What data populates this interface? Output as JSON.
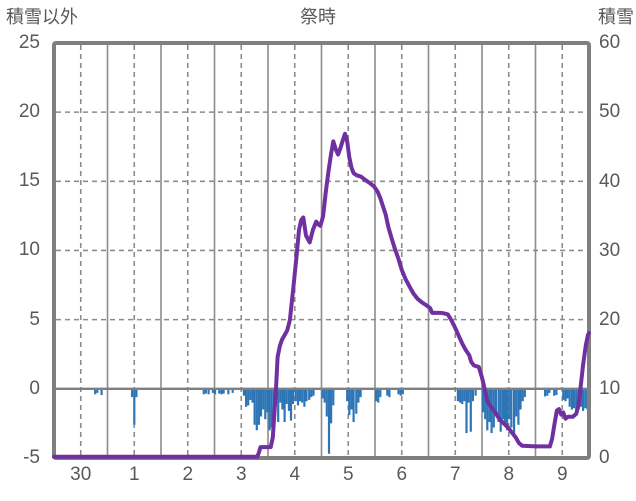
{
  "chart_data": {
    "type": "line+bar",
    "title": "祭時",
    "left_axis": {
      "title": "積雪以外",
      "min": -5,
      "max": 25,
      "ticks": [
        25,
        20,
        15,
        10,
        5,
        0,
        -5
      ]
    },
    "right_axis": {
      "title": "積雪",
      "min": 0,
      "max": 60,
      "ticks": [
        60,
        50,
        40,
        30,
        20,
        10,
        0
      ]
    },
    "x_axis": {
      "labels": [
        "30",
        "1",
        "2",
        "3",
        "4",
        "5",
        "6",
        "7",
        "8",
        "9"
      ],
      "days": 10,
      "grid": "solid at midnight, dashed at noon"
    },
    "colors": {
      "grid": "#8C8C8C",
      "axis": "#7F7F7F",
      "line": "#7030A0",
      "bar": "#2E75B6",
      "text": "#595959",
      "background": "#FFFFFF"
    },
    "series": [
      {
        "name": "積雪",
        "type": "line",
        "axis": "right",
        "color": "#7030A0",
        "points": [
          [
            0,
            0.2
          ],
          [
            3.8,
            0.2
          ],
          [
            3.83,
            0.8
          ],
          [
            3.86,
            1.6
          ],
          [
            4.05,
            1.6
          ],
          [
            4.09,
            3.0
          ],
          [
            4.12,
            6.5
          ],
          [
            4.15,
            10.0
          ],
          [
            4.18,
            14.6
          ],
          [
            4.22,
            16.2
          ],
          [
            4.26,
            17.1
          ],
          [
            4.31,
            17.8
          ],
          [
            4.36,
            18.5
          ],
          [
            4.41,
            20.0
          ],
          [
            4.47,
            24.3
          ],
          [
            4.53,
            29.0
          ],
          [
            4.58,
            33.0
          ],
          [
            4.62,
            34.4
          ],
          [
            4.66,
            34.8
          ],
          [
            4.71,
            32.2
          ],
          [
            4.78,
            31.2
          ],
          [
            4.84,
            33.0
          ],
          [
            4.9,
            34.2
          ],
          [
            4.94,
            33.8
          ],
          [
            4.98,
            33.6
          ],
          [
            5.03,
            35.0
          ],
          [
            5.08,
            38.5
          ],
          [
            5.13,
            41.5
          ],
          [
            5.18,
            44.0
          ],
          [
            5.22,
            45.8
          ],
          [
            5.27,
            44.6
          ],
          [
            5.31,
            43.9
          ],
          [
            5.36,
            45.0
          ],
          [
            5.4,
            46.0
          ],
          [
            5.44,
            46.9
          ],
          [
            5.48,
            45.8
          ],
          [
            5.52,
            43.5
          ],
          [
            5.56,
            42.0
          ],
          [
            5.6,
            41.2
          ],
          [
            5.66,
            40.9
          ],
          [
            5.74,
            40.7
          ],
          [
            5.82,
            40.2
          ],
          [
            5.9,
            39.8
          ],
          [
            5.98,
            39.3
          ],
          [
            6.05,
            38.5
          ],
          [
            6.1,
            37.6
          ],
          [
            6.15,
            36.4
          ],
          [
            6.2,
            35.2
          ],
          [
            6.25,
            33.4
          ],
          [
            6.31,
            31.8
          ],
          [
            6.37,
            30.3
          ],
          [
            6.44,
            28.8
          ],
          [
            6.5,
            27.2
          ],
          [
            6.57,
            25.9
          ],
          [
            6.64,
            24.9
          ],
          [
            6.72,
            23.8
          ],
          [
            6.8,
            23.0
          ],
          [
            6.88,
            22.5
          ],
          [
            6.96,
            22.1
          ],
          [
            7.03,
            21.7
          ],
          [
            7.07,
            21.0
          ],
          [
            7.15,
            21.0
          ],
          [
            7.25,
            21.0
          ],
          [
            7.36,
            20.8
          ],
          [
            7.43,
            19.9
          ],
          [
            7.5,
            18.8
          ],
          [
            7.57,
            17.6
          ],
          [
            7.63,
            16.6
          ],
          [
            7.7,
            15.6
          ],
          [
            7.76,
            14.9
          ],
          [
            7.8,
            13.9
          ],
          [
            7.85,
            13.4
          ],
          [
            7.94,
            13.2
          ],
          [
            7.99,
            11.9
          ],
          [
            8.02,
            11.0
          ],
          [
            8.06,
            9.6
          ],
          [
            8.1,
            8.2
          ],
          [
            8.16,
            7.5
          ],
          [
            8.24,
            6.7
          ],
          [
            8.32,
            5.7
          ],
          [
            8.41,
            5.0
          ],
          [
            8.49,
            4.4
          ],
          [
            8.56,
            3.7
          ],
          [
            8.63,
            3.0
          ],
          [
            8.69,
            2.2
          ],
          [
            8.75,
            1.8
          ],
          [
            9.0,
            1.7
          ],
          [
            9.27,
            1.7
          ],
          [
            9.31,
            2.8
          ],
          [
            9.36,
            5.2
          ],
          [
            9.4,
            6.9
          ],
          [
            9.44,
            7.1
          ],
          [
            9.48,
            6.3
          ],
          [
            9.52,
            6.6
          ],
          [
            9.56,
            5.7
          ],
          [
            9.61,
            6.0
          ],
          [
            9.7,
            6.0
          ],
          [
            9.76,
            6.4
          ],
          [
            9.8,
            7.5
          ],
          [
            9.84,
            10.0
          ],
          [
            9.89,
            13.5
          ],
          [
            9.94,
            16.3
          ],
          [
            9.98,
            17.8
          ],
          [
            10.0,
            18.1
          ]
        ]
      },
      {
        "name": "積雪以外",
        "type": "bar",
        "axis": "left",
        "color": "#2E75B6",
        "points": [
          [
            0.77,
            -0.4
          ],
          [
            0.81,
            -0.3
          ],
          [
            0.89,
            -0.45
          ],
          [
            1.46,
            -0.6
          ],
          [
            1.5,
            -2.6
          ],
          [
            1.54,
            -0.6
          ],
          [
            2.8,
            -0.4
          ],
          [
            2.84,
            -0.35
          ],
          [
            2.89,
            -0.4
          ],
          [
            2.97,
            -0.3
          ],
          [
            3.01,
            -0.4
          ],
          [
            3.09,
            -0.35
          ],
          [
            3.13,
            -0.4
          ],
          [
            3.17,
            -0.35
          ],
          [
            3.26,
            -0.4
          ],
          [
            3.34,
            -0.3
          ],
          [
            3.55,
            -0.5
          ],
          [
            3.59,
            -1.3
          ],
          [
            3.63,
            -1.2
          ],
          [
            3.67,
            -0.8
          ],
          [
            3.71,
            -1.0
          ],
          [
            3.75,
            -2.6
          ],
          [
            3.79,
            -3.0
          ],
          [
            3.83,
            -2.6
          ],
          [
            3.87,
            -2.0
          ],
          [
            3.91,
            -1.5
          ],
          [
            3.95,
            -2.2
          ],
          [
            3.99,
            -1.7
          ],
          [
            4.03,
            -3.0
          ],
          [
            4.07,
            -2.8
          ],
          [
            4.11,
            -1.5
          ],
          [
            4.15,
            -1.2
          ],
          [
            4.19,
            -2.4
          ],
          [
            4.23,
            -1.0
          ],
          [
            4.27,
            -1.5
          ],
          [
            4.31,
            -2.4
          ],
          [
            4.35,
            -1.1
          ],
          [
            4.39,
            -1.6
          ],
          [
            4.43,
            -2.3
          ],
          [
            4.47,
            -1.1
          ],
          [
            4.52,
            -0.9
          ],
          [
            4.56,
            -1.2
          ],
          [
            4.6,
            -0.9
          ],
          [
            4.64,
            -1.0
          ],
          [
            4.68,
            -1.3
          ],
          [
            4.72,
            -0.9
          ],
          [
            4.77,
            -0.8
          ],
          [
            4.81,
            -0.6
          ],
          [
            4.85,
            -0.5
          ],
          [
            5.02,
            -0.7
          ],
          [
            5.06,
            -1.0
          ],
          [
            5.1,
            -2.0
          ],
          [
            5.14,
            -4.7
          ],
          [
            5.18,
            -2.5
          ],
          [
            5.22,
            -1.2
          ],
          [
            5.48,
            -0.9
          ],
          [
            5.52,
            -1.9
          ],
          [
            5.56,
            -1.5
          ],
          [
            5.6,
            -2.4
          ],
          [
            5.65,
            -1.8
          ],
          [
            5.69,
            -1.0
          ],
          [
            5.73,
            -0.6
          ],
          [
            6.02,
            -0.9
          ],
          [
            6.06,
            -1.0
          ],
          [
            6.1,
            -0.6
          ],
          [
            6.23,
            -0.5
          ],
          [
            6.27,
            -0.6
          ],
          [
            6.44,
            -0.4
          ],
          [
            6.48,
            -0.5
          ],
          [
            6.52,
            -0.4
          ],
          [
            7.55,
            -0.9
          ],
          [
            7.59,
            -1.0
          ],
          [
            7.63,
            -1.1
          ],
          [
            7.67,
            -0.9
          ],
          [
            7.71,
            -3.2
          ],
          [
            7.75,
            -1.0
          ],
          [
            7.79,
            -3.1
          ],
          [
            7.83,
            -0.9
          ],
          [
            7.88,
            -0.5
          ],
          [
            8.02,
            -1.7
          ],
          [
            8.06,
            -2.2
          ],
          [
            8.1,
            -3.0
          ],
          [
            8.14,
            -2.4
          ],
          [
            8.18,
            -3.2
          ],
          [
            8.22,
            -2.8
          ],
          [
            8.26,
            -1.9
          ],
          [
            8.31,
            -2.4
          ],
          [
            8.35,
            -3.1
          ],
          [
            8.39,
            -2.2
          ],
          [
            8.43,
            -2.6
          ],
          [
            8.47,
            -3.0
          ],
          [
            8.51,
            -2.2
          ],
          [
            8.55,
            -2.8
          ],
          [
            8.6,
            -3.2
          ],
          [
            8.64,
            -2.0
          ],
          [
            8.68,
            -2.6
          ],
          [
            8.72,
            -1.5
          ],
          [
            8.76,
            -0.9
          ],
          [
            8.8,
            -0.6
          ],
          [
            9.18,
            -0.55
          ],
          [
            9.22,
            -0.5
          ],
          [
            9.26,
            -0.3
          ],
          [
            9.35,
            -0.5
          ],
          [
            9.39,
            -0.45
          ],
          [
            9.52,
            -0.8
          ],
          [
            9.56,
            -0.9
          ],
          [
            9.6,
            -0.7
          ],
          [
            9.64,
            -1.3
          ],
          [
            9.68,
            -1.5
          ],
          [
            9.72,
            -1.4
          ],
          [
            9.76,
            -1.6
          ],
          [
            9.8,
            -1.5
          ],
          [
            9.85,
            -1.3
          ],
          [
            9.89,
            -1.6
          ],
          [
            9.93,
            -1.4
          ],
          [
            9.97,
            -1.5
          ]
        ]
      }
    ]
  }
}
